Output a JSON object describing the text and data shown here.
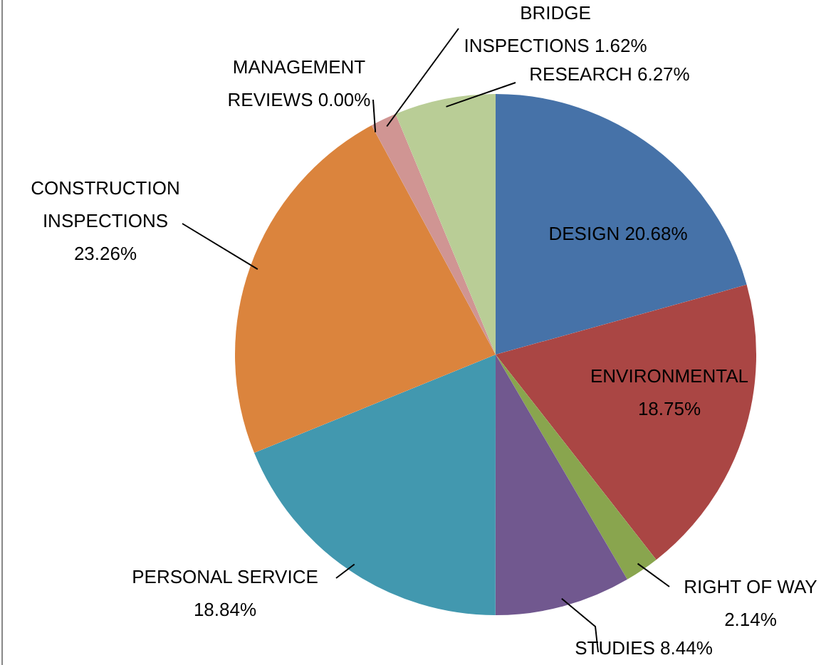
{
  "chart_data": {
    "type": "pie",
    "categories": [
      "DESIGN",
      "ENVIRONMENTAL",
      "RIGHT OF WAY",
      "STUDIES",
      "PERSONAL SERVICE",
      "CONSTRUCTION INSPECTIONS",
      "MANAGEMENT REVIEWS",
      "BRIDGE INSPECTIONS",
      "RESEARCH"
    ],
    "values": [
      20.68,
      18.75,
      2.14,
      8.44,
      18.84,
      23.26,
      0.0,
      1.62,
      6.27
    ],
    "value_labels": [
      "20.68%",
      "18.75%",
      "2.14%",
      "8.44%",
      "18.84%",
      "23.26%",
      "0.00%",
      "1.62%",
      "6.27%"
    ],
    "colors": [
      "#4672a8",
      "#aa4644",
      "#89a54e",
      "#71588f",
      "#4298af",
      "#db843d",
      "#93a9cf",
      "#d09593",
      "#b9cd96"
    ]
  }
}
